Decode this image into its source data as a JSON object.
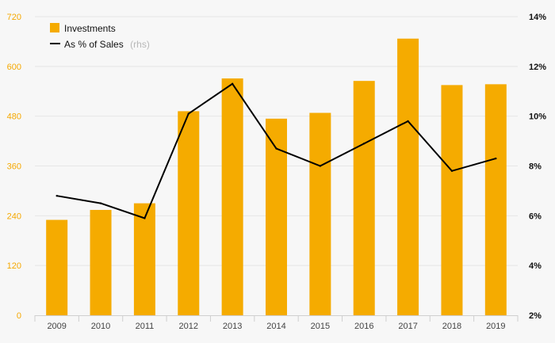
{
  "chart_data": {
    "type": "bar",
    "categories": [
      "2009",
      "2010",
      "2011",
      "2012",
      "2013",
      "2014",
      "2015",
      "2016",
      "2017",
      "2018",
      "2019"
    ],
    "series": [
      {
        "name": "Investments",
        "type": "bar",
        "axis": "left",
        "color": "#f5ab00",
        "values": [
          230,
          254,
          270,
          492,
          571,
          474,
          488,
          565,
          667,
          555,
          557
        ]
      },
      {
        "name": "As % of Sales",
        "name_suffix": "(rhs)",
        "type": "line",
        "axis": "right",
        "color": "#000000",
        "values": [
          6.8,
          6.5,
          5.9,
          10.1,
          11.3,
          8.7,
          8.0,
          8.9,
          9.8,
          7.8,
          8.3
        ]
      }
    ],
    "left_axis": {
      "ylim": [
        0,
        720
      ],
      "ticks": [
        0,
        120,
        240,
        360,
        480,
        600,
        720
      ],
      "color": "#f5a800"
    },
    "right_axis": {
      "ylim": [
        2,
        14
      ],
      "ticks": [
        "2%",
        "4%",
        "6%",
        "8%",
        "10%",
        "12%",
        "14%"
      ]
    },
    "title": "",
    "xlabel": "",
    "ylabel": "",
    "grid": true,
    "legend_position": "top-left"
  }
}
